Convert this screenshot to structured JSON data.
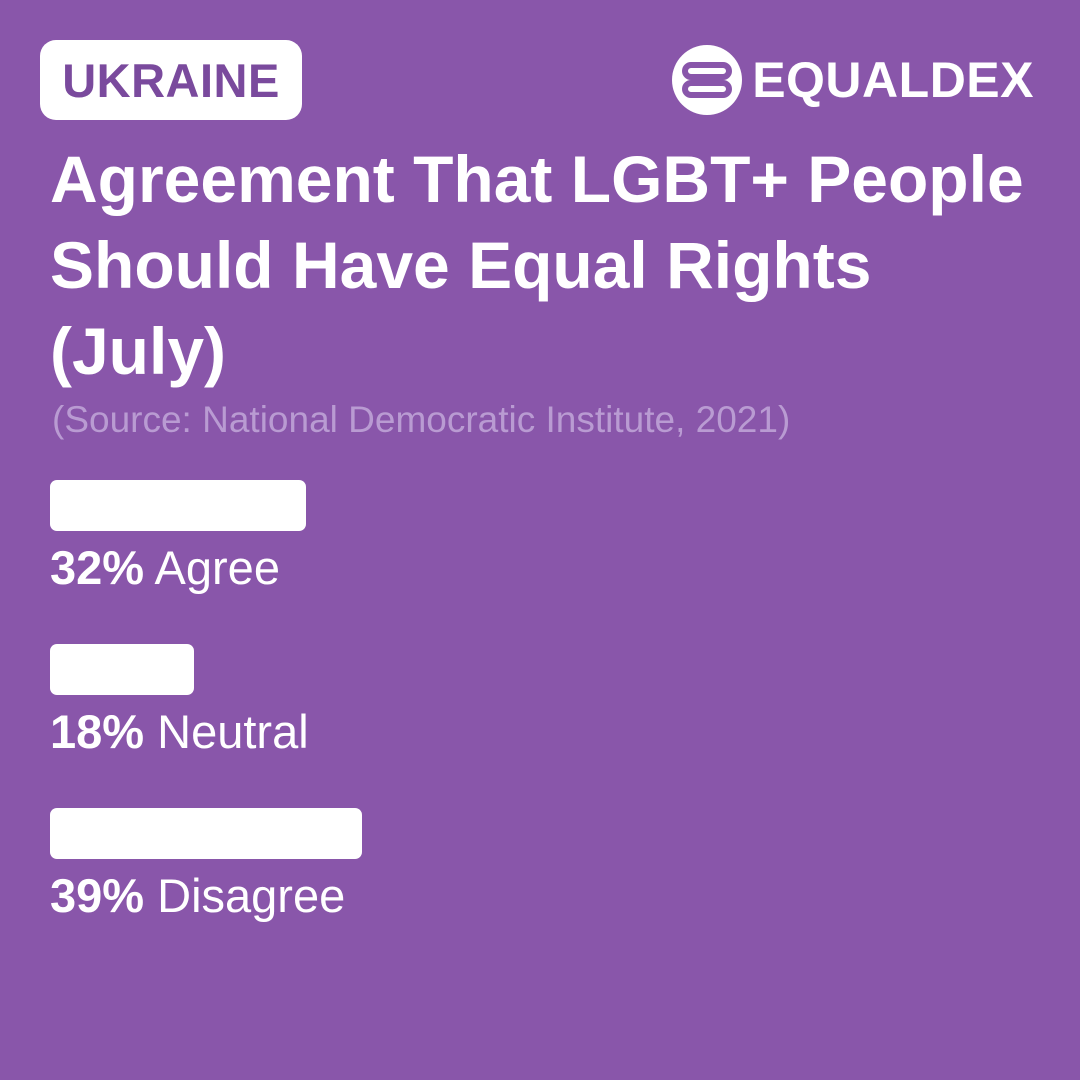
{
  "header": {
    "country": "UKRAINE",
    "brand": "EQUALDEX",
    "brand_logo_icon": "equaldex-logo-icon"
  },
  "colors": {
    "background": "#8956aa",
    "accent_text": "#7a4a9d",
    "source_text": "#b99bd2",
    "bar": "#ffffff"
  },
  "chart_data": {
    "type": "bar",
    "orientation": "horizontal",
    "title": "Agreement That LGBT+ People Should Have Equal Rights (July)",
    "subtitle": "(Source: National Democratic Institute, 2021)",
    "categories": [
      "Agree",
      "Neutral",
      "Disagree"
    ],
    "values": [
      32,
      18,
      39
    ],
    "value_labels": [
      "32%",
      "18%",
      "39%"
    ],
    "unit": "%",
    "xlim": [
      0,
      100
    ],
    "grid": false,
    "legend": "none"
  }
}
